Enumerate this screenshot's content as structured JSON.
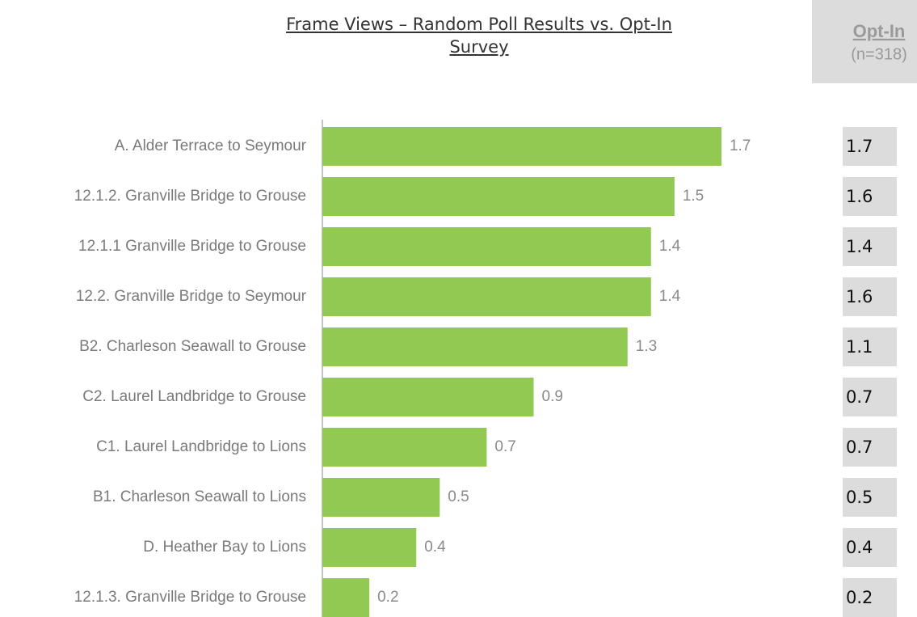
{
  "chart_data": {
    "type": "bar",
    "orientation": "horizontal",
    "title": "Frame Views – Random Poll Results vs. Opt-In Survey",
    "categories": [
      "A. Alder Terrace to Seymour",
      "12.1.2. Granville Bridge to Grouse",
      "12.1.1 Granville Bridge to Grouse",
      "12.2. Granville Bridge to Seymour",
      "B2. Charleson Seawall to Grouse",
      "C2. Laurel Landbridge to Grouse",
      "C1. Laurel Landbridge to Lions",
      "B1. Charleson Seawall to Lions",
      "D. Heather Bay to Lions",
      "12.1.3. Granville Bridge to Grouse"
    ],
    "values": [
      1.7,
      1.5,
      1.4,
      1.4,
      1.3,
      0.9,
      0.7,
      0.5,
      0.4,
      0.2
    ],
    "color": "#92c953",
    "xlim": [
      0,
      1.8
    ],
    "optin": {
      "title": "Opt-In",
      "subtitle": "(n=318)",
      "values": [
        1.7,
        1.6,
        1.4,
        1.6,
        1.1,
        0.7,
        0.7,
        0.5,
        0.4,
        0.2
      ]
    }
  }
}
